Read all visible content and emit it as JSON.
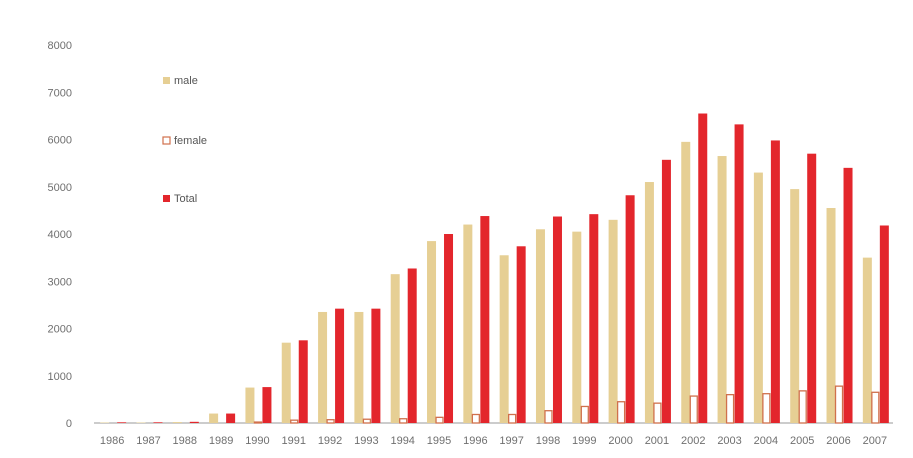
{
  "chart_data": {
    "type": "bar",
    "title": "",
    "xlabel": "",
    "ylabel": "",
    "ylim": [
      0,
      8000
    ],
    "yticks": [
      0,
      1000,
      2000,
      3000,
      4000,
      5000,
      6000,
      7000,
      8000
    ],
    "grid": false,
    "legend_position": "top-left",
    "categories": [
      "1986",
      "1987",
      "1988",
      "1989",
      "1990",
      "1991",
      "1992",
      "1993",
      "1994",
      "1995",
      "1996",
      "1997",
      "1998",
      "1999",
      "2000",
      "2001",
      "2002",
      "2003",
      "2004",
      "2005",
      "2006",
      "2007"
    ],
    "series": [
      {
        "name": "male",
        "color": "#e6cf94",
        "style": "solid",
        "values": [
          10,
          10,
          20,
          200,
          750,
          1700,
          2350,
          2350,
          3150,
          3850,
          4200,
          3550,
          4100,
          4050,
          4300,
          5100,
          5950,
          5650,
          5300,
          4950,
          4550,
          3500
        ]
      },
      {
        "name": "female",
        "color": "#d0704c",
        "style": "outline",
        "values": [
          0,
          0,
          5,
          10,
          20,
          60,
          70,
          80,
          90,
          120,
          180,
          180,
          260,
          350,
          450,
          420,
          570,
          600,
          620,
          680,
          780,
          650
        ]
      },
      {
        "name": "Total",
        "color": "#e3262c",
        "style": "solid",
        "values": [
          15,
          15,
          25,
          200,
          760,
          1750,
          2420,
          2420,
          3270,
          4000,
          4380,
          3740,
          4370,
          4420,
          4820,
          5570,
          6550,
          6320,
          5980,
          5700,
          5400,
          4180
        ]
      }
    ]
  }
}
